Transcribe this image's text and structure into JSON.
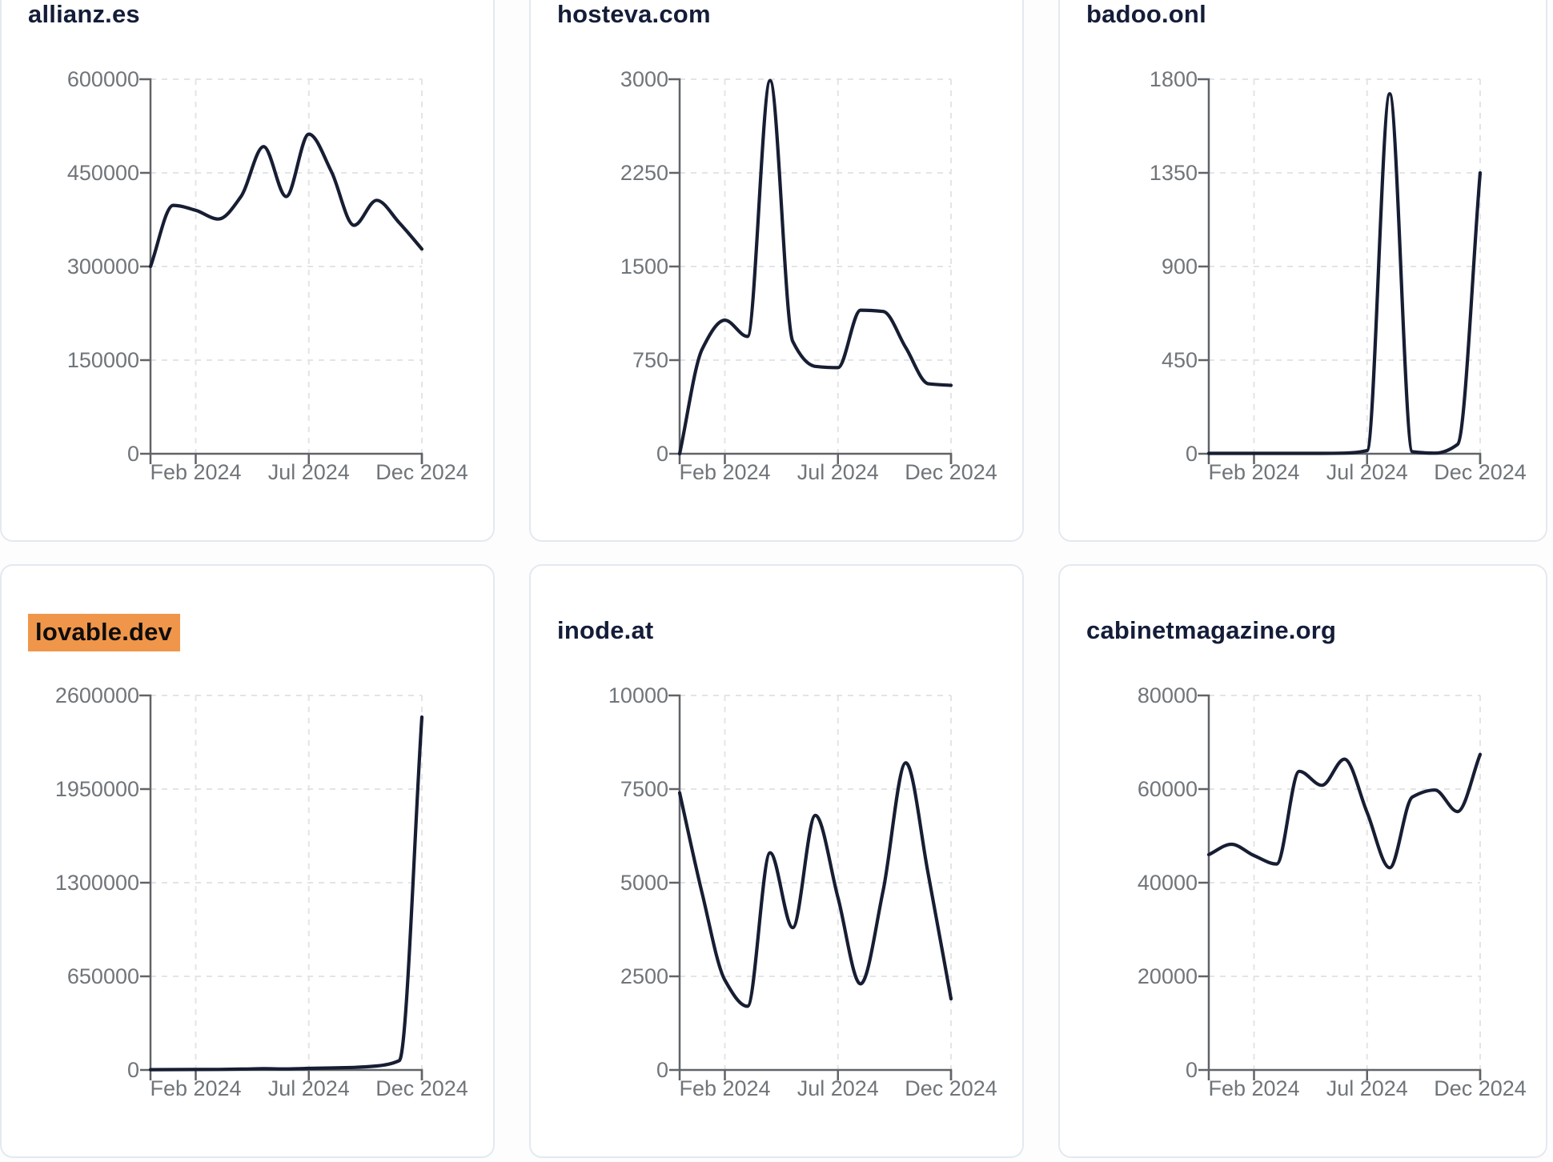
{
  "page": {
    "background": "#fdfdfe"
  },
  "style": {
    "card_background": "#ffffff",
    "card_border": "#e4e9f0",
    "title_color": "#141d38",
    "line_color": "#171e33",
    "axis_color": "#606468",
    "tick_label_color": "#70757a",
    "grid_color": "#e3e4e7",
    "highlight_background": "#f0964a",
    "highlight_text": "#0d0d0d"
  },
  "x_axis": {
    "months": [
      "Dec 2023",
      "Jan 2024",
      "Feb 2024",
      "Mar 2024",
      "Apr 2024",
      "May 2024",
      "Jun 2024",
      "Jul 2024",
      "Aug 2024",
      "Sep 2024",
      "Oct 2024",
      "Nov 2024",
      "Dec 2024"
    ],
    "tick_month_indices": [
      2,
      7,
      12
    ],
    "tick_labels": [
      "Feb 2024",
      "Jul 2024",
      "Dec 2024"
    ]
  },
  "chart_data": [
    {
      "type": "line",
      "title": "allianz.es",
      "highlighted": false,
      "ylim": [
        0,
        600000
      ],
      "yticks": [
        0,
        150000,
        300000,
        450000,
        600000
      ],
      "x": [
        "Dec 2023",
        "Jan 2024",
        "Feb 2024",
        "Mar 2024",
        "Apr 2024",
        "May 2024",
        "Jun 2024",
        "Jul 2024",
        "Aug 2024",
        "Sep 2024",
        "Oct 2024",
        "Nov 2024",
        "Dec 2024"
      ],
      "xticks": [
        "Feb 2024",
        "Jul 2024",
        "Dec 2024"
      ],
      "values": [
        300000,
        398000,
        390000,
        376000,
        412000,
        492000,
        412000,
        512000,
        452000,
        366000,
        406000,
        370000,
        328000
      ]
    },
    {
      "type": "line",
      "title": "hosteva.com",
      "highlighted": false,
      "ylim": [
        0,
        3000
      ],
      "yticks": [
        0,
        750,
        1500,
        2250,
        3000
      ],
      "x": [
        "Dec 2023",
        "Jan 2024",
        "Feb 2024",
        "Mar 2024",
        "Apr 2024",
        "May 2024",
        "Jun 2024",
        "Jul 2024",
        "Aug 2024",
        "Sep 2024",
        "Oct 2024",
        "Nov 2024",
        "Dec 2024"
      ],
      "xticks": [
        "Feb 2024",
        "Jul 2024",
        "Dec 2024"
      ],
      "values": [
        0,
        840,
        1070,
        940,
        2990,
        900,
        700,
        690,
        1150,
        1140,
        850,
        560,
        548
      ]
    },
    {
      "type": "line",
      "title": "badoo.onl",
      "highlighted": false,
      "ylim": [
        0,
        1800
      ],
      "yticks": [
        0,
        450,
        900,
        1350,
        1800
      ],
      "x": [
        "Dec 2023",
        "Jan 2024",
        "Feb 2024",
        "Mar 2024",
        "Apr 2024",
        "May 2024",
        "Jun 2024",
        "Jul 2024",
        "Aug 2024",
        "Sep 2024",
        "Oct 2024",
        "Nov 2024",
        "Dec 2024"
      ],
      "xticks": [
        "Feb 2024",
        "Jul 2024",
        "Dec 2024"
      ],
      "values": [
        2,
        2,
        2,
        2,
        2,
        2,
        3,
        15,
        1730,
        10,
        3,
        45,
        1350
      ]
    },
    {
      "type": "line",
      "title": "lovable.dev",
      "highlighted": true,
      "ylim": [
        0,
        2600000
      ],
      "yticks": [
        0,
        650000,
        1300000,
        1950000,
        2600000
      ],
      "x": [
        "Dec 2023",
        "Jan 2024",
        "Feb 2024",
        "Mar 2024",
        "Apr 2024",
        "May 2024",
        "Jun 2024",
        "Jul 2024",
        "Aug 2024",
        "Sep 2024",
        "Oct 2024",
        "Nov 2024",
        "Dec 2024"
      ],
      "xticks": [
        "Feb 2024",
        "Jul 2024",
        "Dec 2024"
      ],
      "values": [
        2000,
        3000,
        3500,
        4000,
        6000,
        9000,
        7000,
        11000,
        14000,
        18000,
        28000,
        65000,
        2450000
      ]
    },
    {
      "type": "line",
      "title": "inode.at",
      "highlighted": false,
      "ylim": [
        0,
        10000
      ],
      "yticks": [
        0,
        2500,
        5000,
        7500,
        10000
      ],
      "x": [
        "Dec 2023",
        "Jan 2024",
        "Feb 2024",
        "Mar 2024",
        "Apr 2024",
        "May 2024",
        "Jun 2024",
        "Jul 2024",
        "Aug 2024",
        "Sep 2024",
        "Oct 2024",
        "Nov 2024",
        "Dec 2024"
      ],
      "xticks": [
        "Feb 2024",
        "Jul 2024",
        "Dec 2024"
      ],
      "values": [
        7400,
        4700,
        2400,
        1700,
        5800,
        3800,
        6800,
        4600,
        2300,
        4800,
        8200,
        5200,
        1900
      ]
    },
    {
      "type": "line",
      "title": "cabinetmagazine.org",
      "highlighted": false,
      "ylim": [
        0,
        80000
      ],
      "yticks": [
        0,
        20000,
        40000,
        60000,
        80000
      ],
      "x": [
        "Dec 2023",
        "Jan 2024",
        "Feb 2024",
        "Mar 2024",
        "Apr 2024",
        "May 2024",
        "Jun 2024",
        "Jul 2024",
        "Aug 2024",
        "Sep 2024",
        "Oct 2024",
        "Nov 2024",
        "Dec 2024"
      ],
      "xticks": [
        "Feb 2024",
        "Jul 2024",
        "Dec 2024"
      ],
      "values": [
        46000,
        48200,
        45800,
        44000,
        63800,
        60800,
        66400,
        55000,
        43200,
        58300,
        59800,
        55200,
        67400
      ]
    }
  ]
}
